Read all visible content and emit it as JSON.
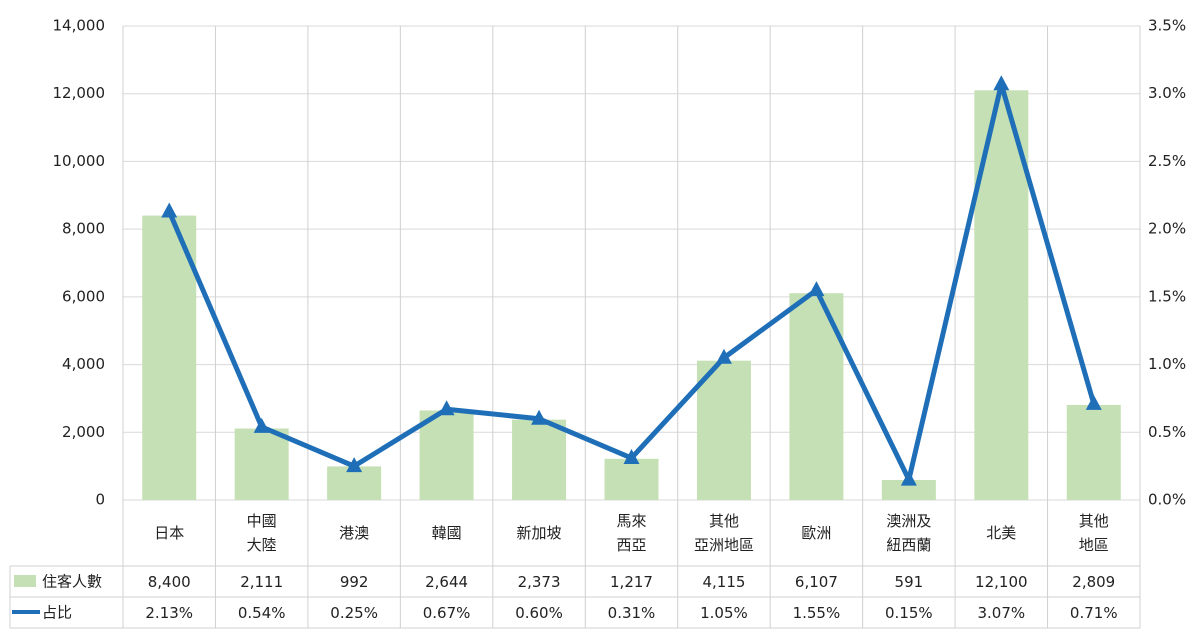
{
  "chart_data": {
    "type": "bar",
    "categories": [
      "日本",
      "中國\n大陸",
      "港澳",
      "韓國",
      "新加坡",
      "馬來\n西亞",
      "其他\n亞洲地區",
      "歐洲",
      "澳洲及\n紐西蘭",
      "北美",
      "其他\n地區"
    ],
    "series": [
      {
        "name": "住客人數",
        "type": "bar",
        "color": "#c5e0b4",
        "values": [
          8400,
          2111,
          992,
          2644,
          2373,
          1217,
          4115,
          6107,
          591,
          12100,
          2809
        ],
        "value_labels": [
          "8,400",
          "2,111",
          "992",
          "2,644",
          "2,373",
          "1,217",
          "4,115",
          "6,107",
          "591",
          "12,100",
          "2,809"
        ]
      },
      {
        "name": "占比",
        "type": "line",
        "axis": "y2",
        "color": "#1f6fb8",
        "values": [
          2.13,
          0.54,
          0.25,
          0.67,
          0.6,
          0.31,
          1.05,
          1.55,
          0.15,
          3.07,
          0.71
        ],
        "value_labels": [
          "2.13%",
          "0.54%",
          "0.25%",
          "0.67%",
          "0.60%",
          "0.31%",
          "1.05%",
          "1.55%",
          "0.15%",
          "3.07%",
          "0.71%"
        ]
      }
    ],
    "ylim": [
      0,
      14000
    ],
    "yticks": [
      0,
      {
        "value": 2000,
        "label": "2,000"
      },
      {
        "value": 4000,
        "label": "4,000"
      },
      {
        "value": 6000,
        "label": "6,000"
      },
      {
        "value": 8000,
        "label": "8,000"
      },
      {
        "value": 10000,
        "label": "10,000"
      },
      {
        "value": 12000,
        "label": "12,000"
      },
      {
        "value": 14000,
        "label": "14,000"
      }
    ],
    "y2lim": [
      0,
      3.5
    ],
    "y2ticks": [
      {
        "value": 0,
        "label": "0.0%"
      },
      {
        "value": 0.5,
        "label": "0.5%"
      },
      {
        "value": 1,
        "label": "1.0%"
      },
      {
        "value": 1.5,
        "label": "1.5%"
      },
      {
        "value": 2,
        "label": "2.0%"
      },
      {
        "value": 2.5,
        "label": "2.5%"
      },
      {
        "value": 3,
        "label": "3.0%"
      },
      {
        "value": 3.5,
        "label": "3.5%"
      }
    ],
    "grid": true
  }
}
